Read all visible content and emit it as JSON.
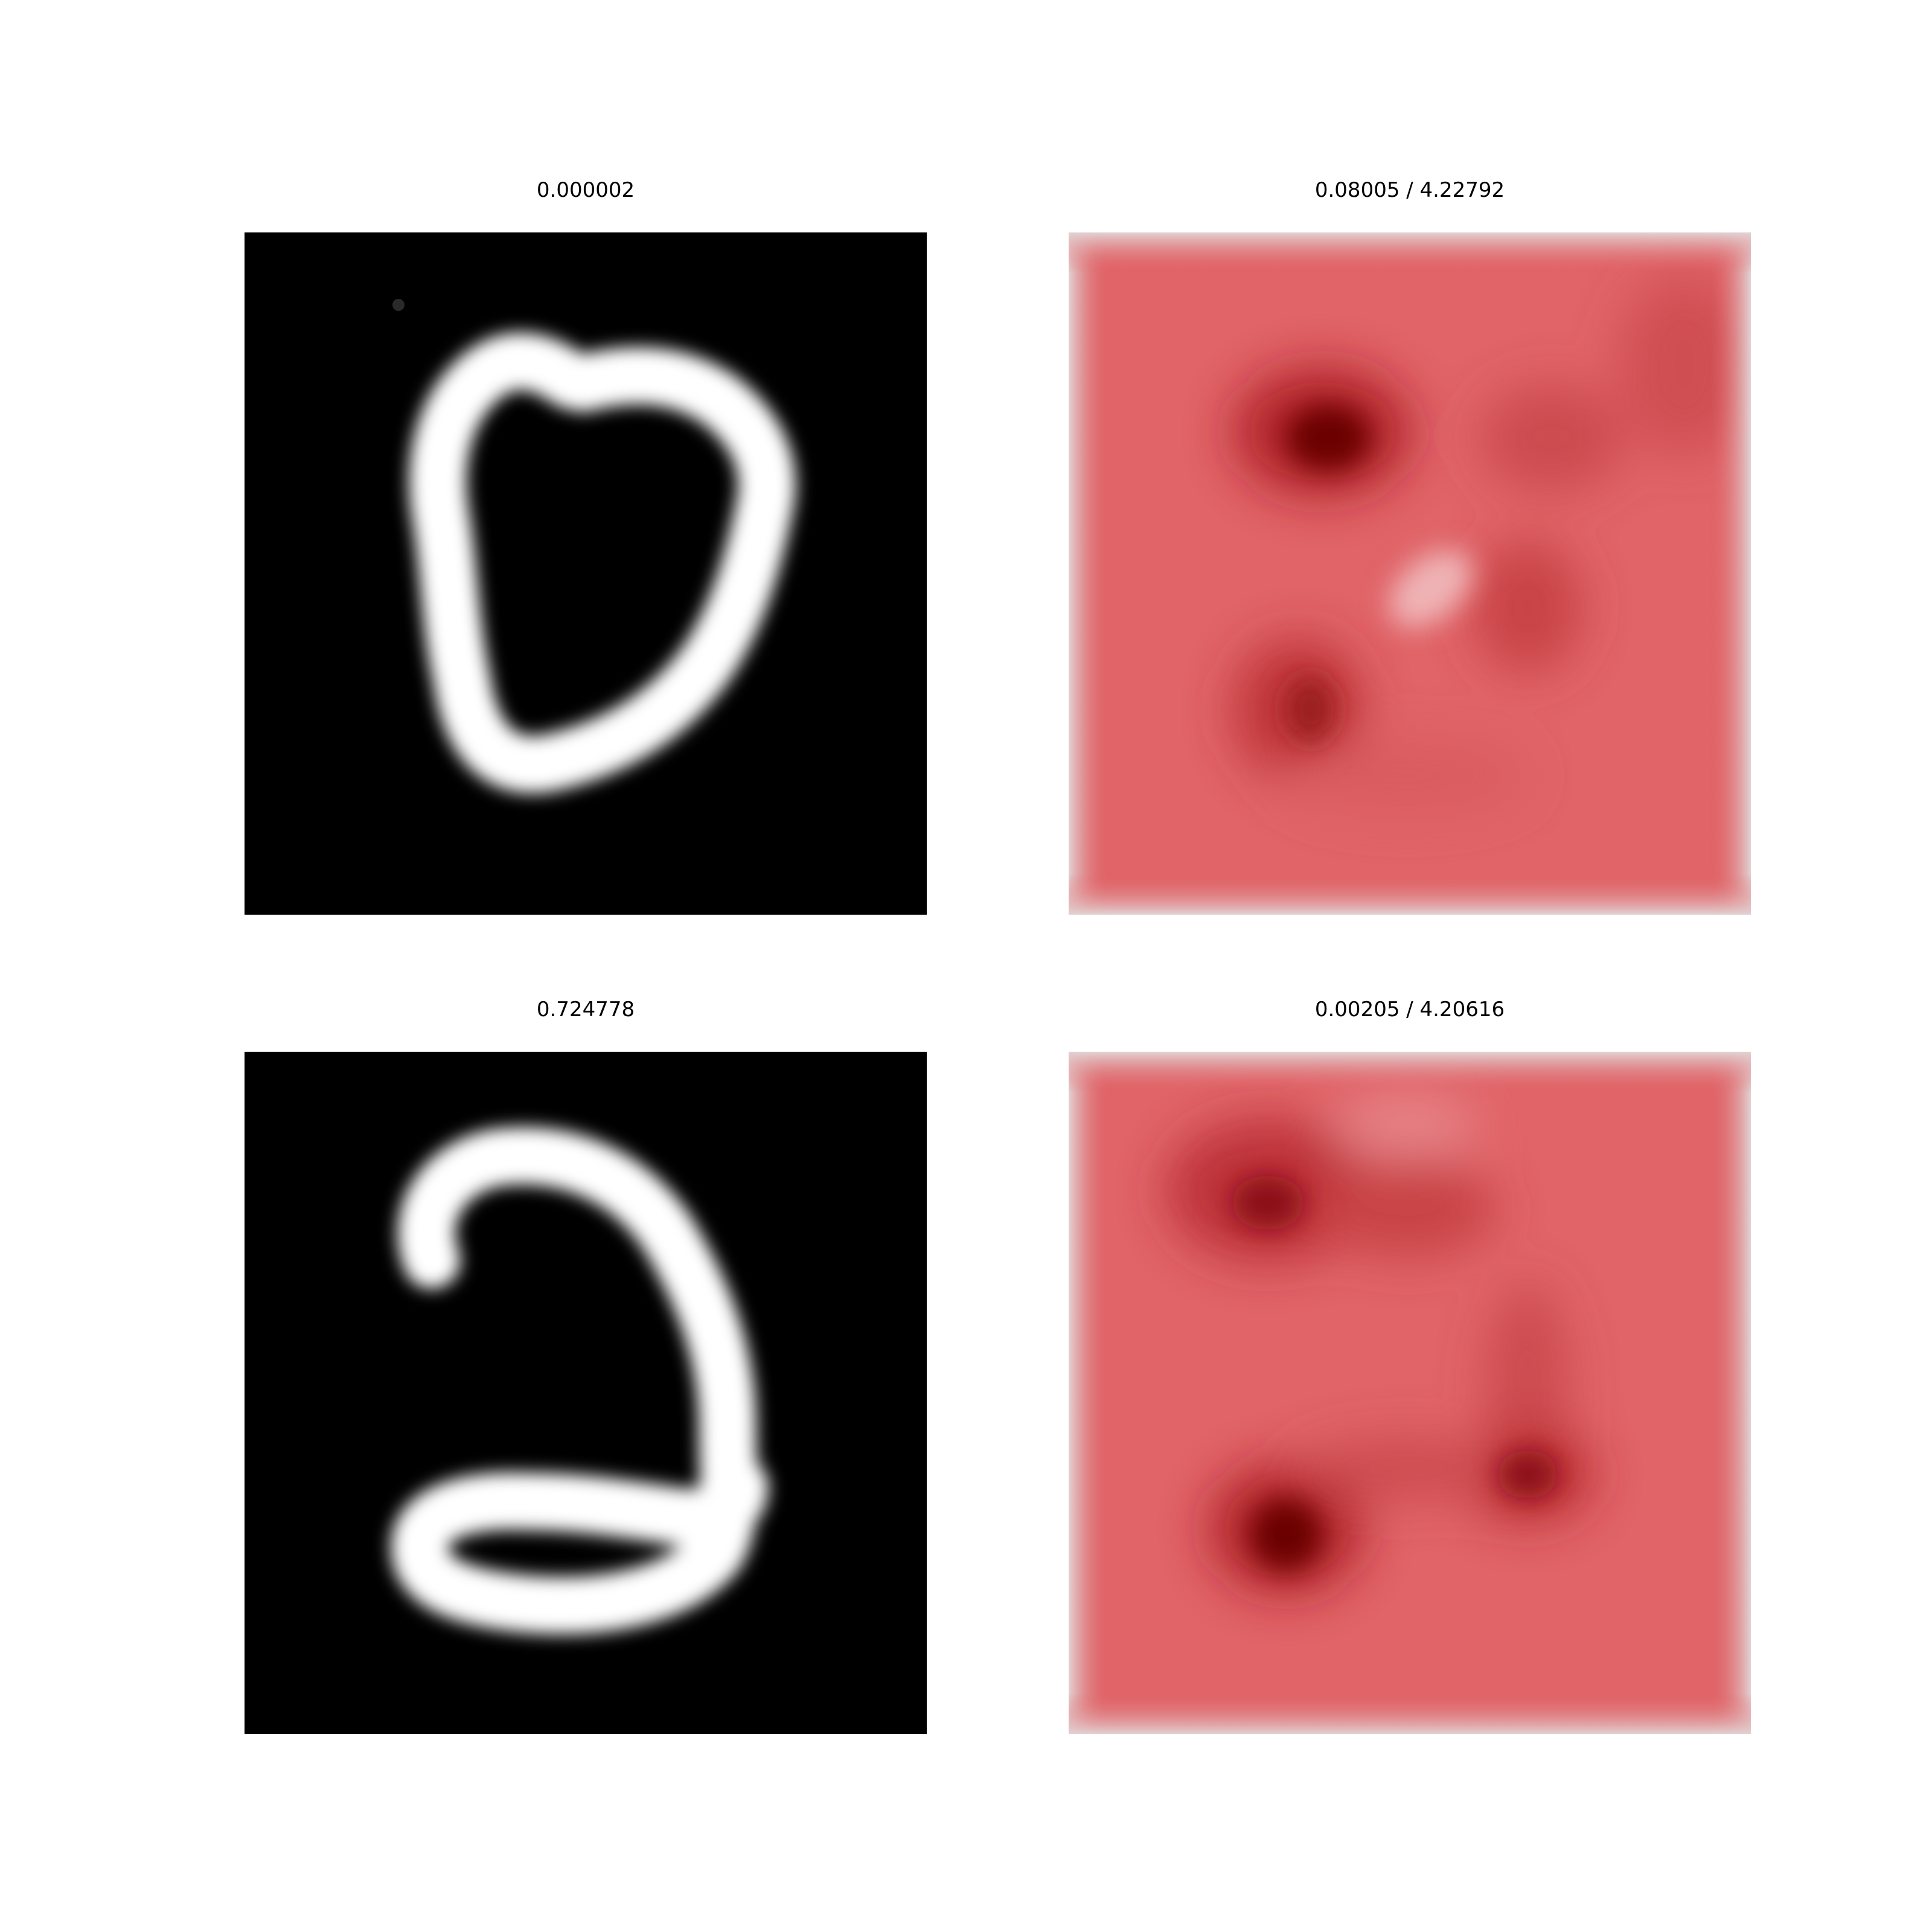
{
  "figure": {
    "panels": [
      {
        "title": "0.000002",
        "kind": "digit-image",
        "digit": "0",
        "colormap": "gray"
      },
      {
        "title": "0.08005 / 4.22792",
        "kind": "heatmap",
        "colormap": "reds"
      },
      {
        "title": "0.724778",
        "kind": "digit-image",
        "digit": "2",
        "colormap": "gray"
      },
      {
        "title": "0.00205 / 4.20616",
        "kind": "heatmap",
        "colormap": "reds"
      }
    ]
  },
  "colors": {
    "background": "#ffffff",
    "digit_background": "#000000",
    "digit_stroke": "#ffffff",
    "heat_base": "#e06468",
    "heat_dark": "#6b0000",
    "heat_light": "#efb4b6",
    "heat_border": "#e2d2d3"
  }
}
